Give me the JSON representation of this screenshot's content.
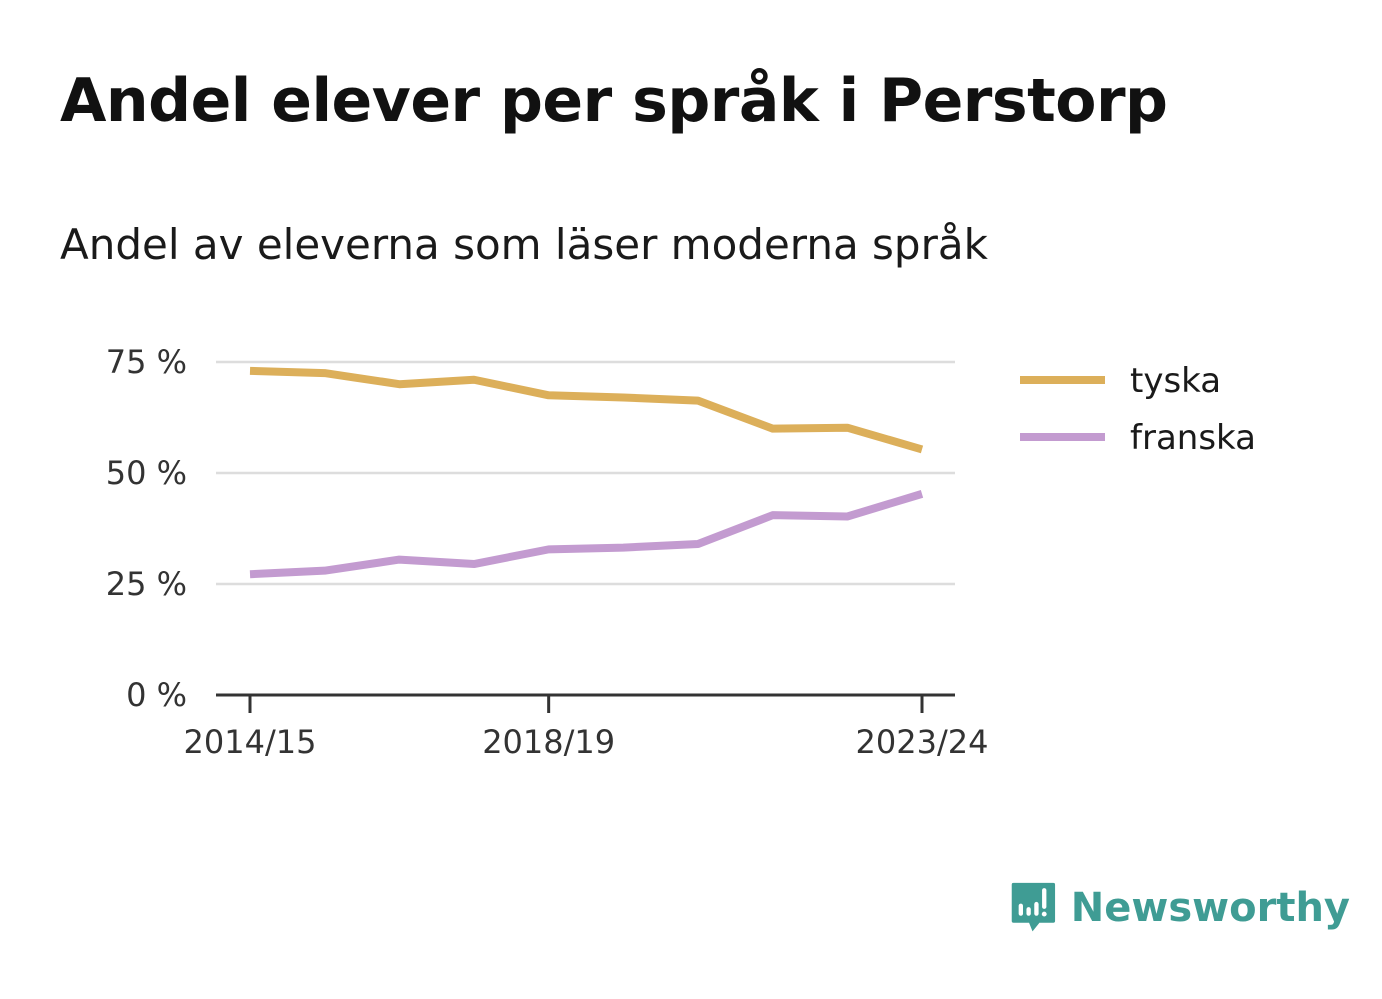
{
  "header": {
    "title": "Andel elever per språk i Perstorp",
    "subtitle": "Andel av eleverna som läser moderna språk"
  },
  "chart_data": {
    "type": "line",
    "title": "Andel elever per språk i Perstorp",
    "subtitle": "Andel av eleverna som läser moderna språk",
    "xlabel": "",
    "ylabel": "",
    "x": [
      "2014/15",
      "2015/16",
      "2016/17",
      "2017/18",
      "2018/19",
      "2019/20",
      "2020/21",
      "2021/22",
      "2022/23",
      "2023/24"
    ],
    "x_tick_labels": [
      "2014/15",
      "2018/19",
      "2023/24"
    ],
    "y_ticks": [
      0,
      25,
      50,
      75
    ],
    "y_tick_labels": [
      "0 %",
      "25 %",
      "50 %",
      "75 %"
    ],
    "ylim": [
      0,
      75
    ],
    "grid": true,
    "legend_position": "right",
    "series": [
      {
        "name": "tyska",
        "color": "#dcaf5a",
        "values": [
          73,
          72.5,
          70,
          71,
          67.5,
          67,
          66.3,
          60,
          60.2,
          55.3
        ]
      },
      {
        "name": "franska",
        "color": "#c39bd0",
        "values": [
          27.2,
          28,
          30.5,
          29.5,
          32.8,
          33.2,
          34,
          40.5,
          40.2,
          45.3
        ]
      }
    ]
  },
  "brand": {
    "name": "Newsworthy",
    "icon": "newsworthy-logo-icon",
    "color": "#3f9c94"
  }
}
